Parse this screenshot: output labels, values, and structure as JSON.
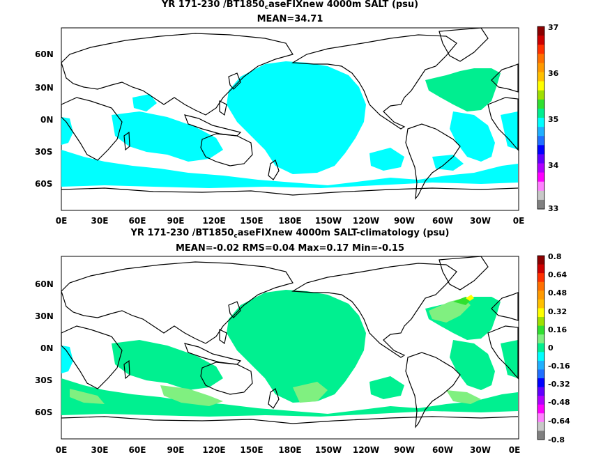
{
  "top_panel": {
    "title_prefix": "YR 171-230 /BT1850",
    "title_sub": "c",
    "title_suffix": "aseFIXnew 4000m SALT (psu)",
    "stats": "MEAN=34.71",
    "lat_labels": [
      "60N",
      "30N",
      "0N",
      "30S",
      "60S"
    ],
    "lon_labels": [
      "0E",
      "30E",
      "60E",
      "90E",
      "120E",
      "150E",
      "180E",
      "150W",
      "120W",
      "90W",
      "60W",
      "30W",
      "0E"
    ],
    "colorbar_labels": [
      "37",
      "36",
      "35",
      "34",
      "33"
    ],
    "colorbar_colors": [
      "#8b0000",
      "#cc0000",
      "#ff3000",
      "#ff7000",
      "#ff9a00",
      "#ffc000",
      "#ffff00",
      "#a0e000",
      "#30e030",
      "#00ee90",
      "#00ffff",
      "#20b0ff",
      "#2070ff",
      "#0000ff",
      "#6000ff",
      "#b000ff",
      "#ff00ff",
      "#ff80ff",
      "#c8c8c8",
      "#808080"
    ]
  },
  "bottom_panel": {
    "title_prefix": "YR 171-230 /BT1850",
    "title_sub": "c",
    "title_suffix": "aseFIXnew 4000m SALT-climatology (psu)",
    "stats": "MEAN=-0.02   RMS=0.04   Max=0.17   Min=-0.15",
    "lat_labels": [
      "60N",
      "30N",
      "0N",
      "30S",
      "60S"
    ],
    "lon_labels": [
      "0E",
      "30E",
      "60E",
      "90E",
      "120E",
      "150E",
      "180E",
      "150W",
      "120W",
      "90W",
      "60W",
      "30W",
      "0E"
    ],
    "colorbar_labels": [
      "0.8",
      "0.64",
      "0.48",
      "0.32",
      "0.16",
      "0",
      "-0.16",
      "-0.32",
      "-0.48",
      "-0.64",
      "-0.8"
    ],
    "colorbar_colors": [
      "#8b0000",
      "#cc0000",
      "#ff3000",
      "#ff7000",
      "#ff9a00",
      "#ffc000",
      "#ffff00",
      "#a0e000",
      "#30e030",
      "#80f080",
      "#00f090",
      "#00ffff",
      "#20b0ff",
      "#2070ff",
      "#0000ff",
      "#6000ff",
      "#b000ff",
      "#ff00ff",
      "#ff80ff",
      "#c8c8c8",
      "#808080"
    ]
  }
}
